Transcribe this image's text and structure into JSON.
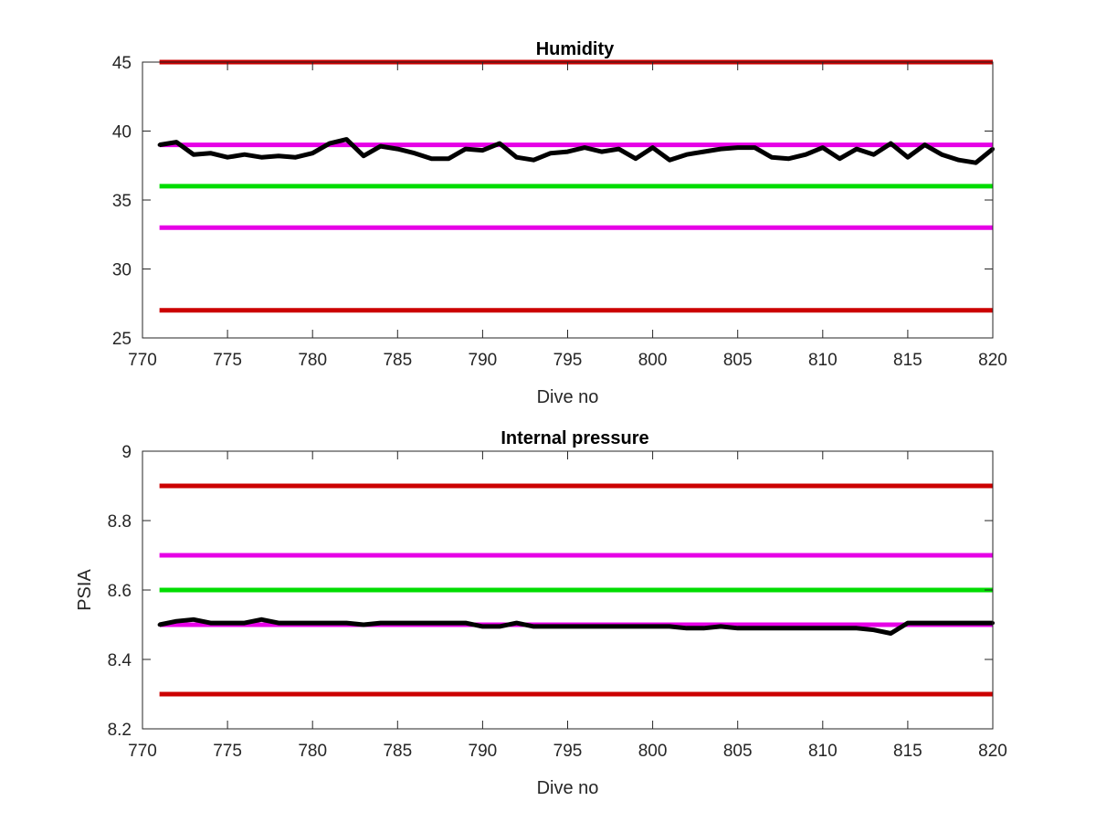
{
  "chart_data": [
    {
      "type": "line",
      "title": "Humidity",
      "xlabel": "Dive no",
      "ylabel": "",
      "xlim": [
        770,
        820
      ],
      "ylim": [
        25,
        45
      ],
      "xticks": [
        770,
        775,
        780,
        785,
        790,
        795,
        800,
        805,
        810,
        815,
        820
      ],
      "yticks": [
        25,
        30,
        35,
        40,
        45
      ],
      "xtick_labels": [
        "770",
        "775",
        "780",
        "785",
        "790",
        "795",
        "800",
        "805",
        "810",
        "815",
        "820"
      ],
      "ytick_labels": [
        "25",
        "30",
        "35",
        "40",
        "45"
      ],
      "grid": false,
      "legend": "none",
      "reference_lines": [
        {
          "y": 45,
          "color": "#cc0000"
        },
        {
          "y": 39,
          "color": "#e600e6"
        },
        {
          "y": 36,
          "color": "#00dd00"
        },
        {
          "y": 33,
          "color": "#e600e6"
        },
        {
          "y": 27,
          "color": "#cc0000"
        }
      ],
      "series": [
        {
          "color": "#000000",
          "x": [
            771,
            772,
            773,
            774,
            775,
            776,
            777,
            778,
            779,
            780,
            781,
            782,
            783,
            784,
            785,
            786,
            787,
            788,
            789,
            790,
            791,
            792,
            793,
            794,
            795,
            796,
            797,
            798,
            799,
            800,
            801,
            802,
            803,
            804,
            805,
            806,
            807,
            808,
            809,
            810,
            811,
            812,
            813,
            814,
            815,
            816,
            817,
            818,
            819,
            820
          ],
          "y": [
            39.0,
            39.2,
            38.3,
            38.4,
            38.1,
            38.3,
            38.1,
            38.2,
            38.1,
            38.4,
            39.1,
            39.4,
            38.2,
            38.9,
            38.7,
            38.4,
            38.0,
            38.0,
            38.7,
            38.6,
            39.1,
            38.1,
            37.9,
            38.4,
            38.5,
            38.8,
            38.5,
            38.7,
            38.0,
            38.8,
            37.9,
            38.3,
            38.5,
            38.7,
            38.8,
            38.8,
            38.1,
            38.0,
            38.3,
            38.8,
            38.0,
            38.7,
            38.3,
            39.1,
            38.1,
            39.0,
            38.3,
            37.9,
            37.7,
            38.7
          ]
        }
      ]
    },
    {
      "type": "line",
      "title": "Internal pressure",
      "xlabel": "Dive no",
      "ylabel": "PSIA",
      "xlim": [
        770,
        820
      ],
      "ylim": [
        8.2,
        9
      ],
      "xticks": [
        770,
        775,
        780,
        785,
        790,
        795,
        800,
        805,
        810,
        815,
        820
      ],
      "yticks": [
        8.2,
        8.4,
        8.6,
        8.8,
        9
      ],
      "xtick_labels": [
        "770",
        "775",
        "780",
        "785",
        "790",
        "795",
        "800",
        "805",
        "810",
        "815",
        "820"
      ],
      "ytick_labels": [
        "8.2",
        "8.4",
        "8.6",
        "8.8",
        "9"
      ],
      "grid": false,
      "legend": "none",
      "reference_lines": [
        {
          "y": 8.9,
          "color": "#cc0000"
        },
        {
          "y": 8.7,
          "color": "#e600e6"
        },
        {
          "y": 8.6,
          "color": "#00dd00"
        },
        {
          "y": 8.5,
          "color": "#e600e6"
        },
        {
          "y": 8.3,
          "color": "#cc0000"
        }
      ],
      "series": [
        {
          "color": "#000000",
          "x": [
            771,
            772,
            773,
            774,
            775,
            776,
            777,
            778,
            779,
            780,
            781,
            782,
            783,
            784,
            785,
            786,
            787,
            788,
            789,
            790,
            791,
            792,
            793,
            794,
            795,
            796,
            797,
            798,
            799,
            800,
            801,
            802,
            803,
            804,
            805,
            806,
            807,
            808,
            809,
            810,
            811,
            812,
            813,
            814,
            815,
            816,
            817,
            818,
            819,
            820
          ],
          "y": [
            8.5,
            8.51,
            8.515,
            8.505,
            8.505,
            8.505,
            8.515,
            8.505,
            8.505,
            8.505,
            8.505,
            8.505,
            8.5,
            8.505,
            8.505,
            8.505,
            8.505,
            8.505,
            8.505,
            8.495,
            8.495,
            8.505,
            8.495,
            8.495,
            8.495,
            8.495,
            8.495,
            8.495,
            8.495,
            8.495,
            8.495,
            8.49,
            8.49,
            8.495,
            8.49,
            8.49,
            8.49,
            8.49,
            8.49,
            8.49,
            8.49,
            8.49,
            8.485,
            8.475,
            8.505,
            8.505,
            8.505,
            8.505,
            8.505,
            8.505
          ]
        }
      ]
    }
  ]
}
